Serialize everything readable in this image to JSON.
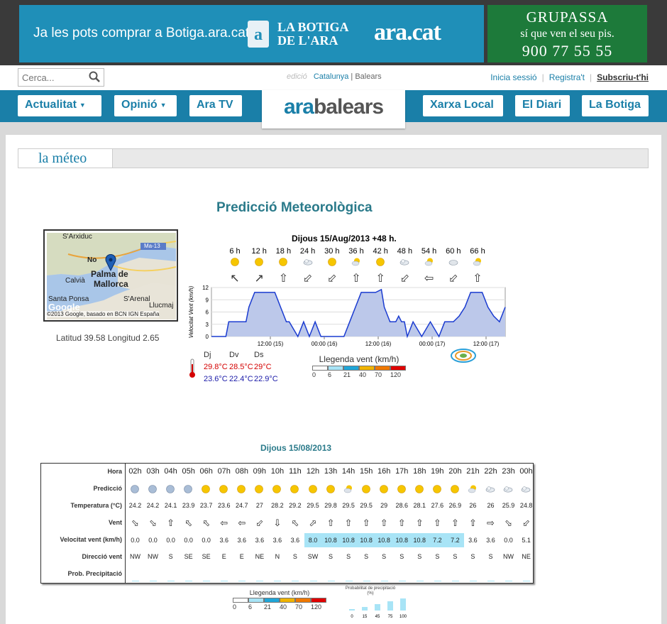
{
  "banner": {
    "botiga_text": "Ja les pots comprar a Botiga.ara.cat",
    "botiga_bag": "a",
    "botiga_name": "LA BOTIGA DE L'ARA",
    "botiga_brand": "ara.cat",
    "grupassa_name": "GRUPASSA",
    "grupassa_slogan": "sí que ven el seu pis.",
    "grupassa_phone": "900 77 55 55"
  },
  "search": {
    "placeholder": "Cerca..."
  },
  "edition": {
    "label": "edició",
    "cat": "Catalunya",
    "sep": "|",
    "bal": "Balears"
  },
  "account": {
    "login": "Inicia sessió",
    "register": "Registra't",
    "subscribe": "Subscriu-t'hi",
    "sep": "|"
  },
  "nav": {
    "actualitat": "Actualitat",
    "opinio": "Opinió",
    "aratv": "Ara TV",
    "xarxa": "Xarxa Local",
    "diari": "El Diari",
    "botiga": "La Botiga",
    "caret": "▼"
  },
  "logo": {
    "ara": "ara",
    "balears": "balears"
  },
  "section": {
    "label": "la méteo"
  },
  "title": "Predicció Meteorològica",
  "map": {
    "labels": [
      "S'Arxiduc",
      "Ma-13",
      "Palma de",
      "Mallorca",
      "Calvià",
      "S'Arenal",
      "Santa Ponsa",
      "Llucmaj",
      "No"
    ],
    "copyright": "©2013 Google, basado en BCN IGN España",
    "google": "Google",
    "latlon": "Latitud 39.58 Longitud 2.65"
  },
  "forecast": {
    "date": "Dijous 15/Aug/2013 +48 h.",
    "hours": [
      "6 h",
      "12 h",
      "18 h",
      "24 h",
      "30 h",
      "36 h",
      "42 h",
      "48 h",
      "54 h",
      "60 h",
      "66 h"
    ],
    "wx_icons": [
      "sun-icon",
      "sun-icon",
      "sun-icon",
      "night-cloud-icon",
      "sun-icon",
      "sun-cloud-icon",
      "sun-icon",
      "night-cloud-icon",
      "sun-cloud-icon",
      "cloud-icon",
      "sun-cloud-icon"
    ],
    "wind_arrows": [
      "↖",
      "↗",
      "⇧",
      "⬃",
      "⬃",
      "⇧",
      "⇧",
      "⬃",
      "⇦",
      "⬃",
      "⇧"
    ],
    "temp_days": [
      "Dj",
      "Dv",
      "Ds"
    ],
    "temp_max": [
      "29.8°C",
      "28.5°C",
      "29°C"
    ],
    "temp_min": [
      "23.6°C",
      "22.4°C",
      "22.9°C"
    ],
    "max_color": "#d40000",
    "min_color": "#1a1aa8"
  },
  "chart_data": {
    "type": "area",
    "title": "",
    "ylabel": "Velocitat Vent (km/h)",
    "ylim": [
      0,
      12
    ],
    "yticks": [
      0,
      3,
      6,
      9,
      12
    ],
    "x_labels": [
      "12:00 (15)",
      "00:00 (16)",
      "12:00 (16)",
      "00:00 (17)",
      "12:00 (17)"
    ],
    "x": [
      0,
      3,
      5,
      6,
      9,
      12,
      13,
      15,
      17,
      19,
      22,
      24,
      26,
      27,
      30,
      32,
      34,
      36,
      38,
      40,
      43,
      46,
      48,
      50,
      52,
      54,
      56,
      57,
      59,
      60,
      62,
      64,
      65,
      66,
      67,
      68,
      70,
      73,
      76,
      79,
      81,
      84,
      86,
      88,
      90,
      92,
      94,
      96,
      98,
      100,
      102
    ],
    "values": [
      0,
      0,
      0,
      3.6,
      3.6,
      3.6,
      7.2,
      10.8,
      10.8,
      10.8,
      10.8,
      7.2,
      3.6,
      3.6,
      0,
      3.6,
      0,
      3.6,
      0,
      0,
      0,
      0,
      3.6,
      7.2,
      10.8,
      10.8,
      10.8,
      10.8,
      11.5,
      7.2,
      3.6,
      3.6,
      5,
      3.6,
      3.6,
      0,
      3.6,
      0,
      3.6,
      0,
      3.6,
      3.6,
      5,
      7.2,
      10.8,
      10.8,
      10.8,
      7.2,
      5,
      3.6,
      7.2
    ],
    "fill": "#bcc8ea",
    "line": "#1a3bd0",
    "grid": true
  },
  "legend_vent": {
    "title": "Llegenda vent (km/h)",
    "colors": [
      "#ffffff",
      "#a8e4f6",
      "#1fa6d8",
      "#f0b400",
      "#f07800",
      "#e00000"
    ],
    "values": [
      "0",
      "6",
      "21",
      "40",
      "70",
      "120"
    ]
  },
  "table": {
    "title": "Dijous 15/08/2013",
    "row_labels": [
      "Hora",
      "Predicció",
      "Temperatura (°C)",
      "Vent",
      "Velocitat vent (km/h)",
      "Direcció vent",
      "Prob. Precipitació"
    ],
    "hours": [
      "02h",
      "03h",
      "04h",
      "05h",
      "06h",
      "07h",
      "08h",
      "09h",
      "10h",
      "11h",
      "12h",
      "13h",
      "14h",
      "15h",
      "16h",
      "17h",
      "18h",
      "19h",
      "20h",
      "21h",
      "22h",
      "23h",
      "00h"
    ],
    "predictions": [
      "moon-icon",
      "moon-icon",
      "moon-icon",
      "moon-icon",
      "sun-icon",
      "sun-icon",
      "sun-icon",
      "sun-icon",
      "sun-icon",
      "sun-icon",
      "sun-icon",
      "sun-icon",
      "sun-cloud-icon",
      "sun-icon",
      "sun-icon",
      "sun-icon",
      "sun-icon",
      "sun-icon",
      "sun-icon",
      "sun-cloud-icon",
      "night-cloud-icon",
      "night-cloud-icon",
      "night-cloud-icon"
    ],
    "temps": [
      "24.2",
      "24.2",
      "24.1",
      "23.9",
      "23.7",
      "23.6",
      "24.7",
      "27",
      "28.2",
      "29.2",
      "29.5",
      "29.8",
      "29.5",
      "29.5",
      "29",
      "28.6",
      "28.1",
      "27.6",
      "26.9",
      "26",
      "26",
      "25.9",
      "24.8"
    ],
    "wind_arrows": [
      "⬂",
      "⬂",
      "⇧",
      "⬁",
      "⬁",
      "⇦",
      "⇦",
      "⬃",
      "⇩",
      "⬁",
      "⬀",
      "⇧",
      "⇧",
      "⇧",
      "⇧",
      "⇧",
      "⇧",
      "⇧",
      "⇧",
      "⇧",
      "⇨",
      "⬂",
      "⬃"
    ],
    "speeds": [
      "0.0",
      "0.0",
      "0.0",
      "0.0",
      "0.0",
      "3.6",
      "3.6",
      "3.6",
      "3.6",
      "3.6",
      "8.0",
      "10.8",
      "10.8",
      "10.8",
      "10.8",
      "10.8",
      "10.8",
      "7.2",
      "7.2",
      "3.6",
      "3.6",
      "0.0",
      "5.1"
    ],
    "speed_highlight_color": "#a8e4f6",
    "directions": [
      "NW",
      "NW",
      "S",
      "SE",
      "SE",
      "E",
      "E",
      "NE",
      "N",
      "S",
      "SW",
      "S",
      "S",
      "S",
      "S",
      "S",
      "S",
      "S",
      "S",
      "S",
      "S",
      "NW",
      "NE"
    ]
  },
  "prob_legend": {
    "title": "Probabilitat de precipitació (%)",
    "values": [
      "0",
      "15",
      "45",
      "75",
      "100"
    ]
  }
}
